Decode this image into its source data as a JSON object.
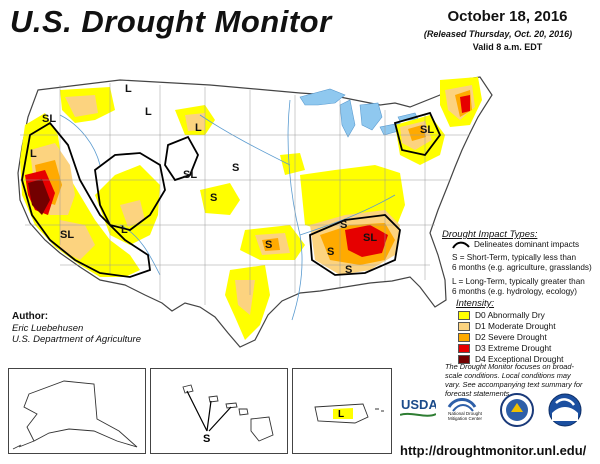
{
  "header": {
    "title": "U.S. Drought Monitor",
    "date": "October 18, 2016",
    "released": "(Released Thursday, Oct. 20, 2016)",
    "valid": "Valid 8 a.m. EDT"
  },
  "map_labels": {
    "sl": "SL",
    "l": "L",
    "s": "S"
  },
  "legend": {
    "impact_heading": "Drought Impact Types:",
    "dominant": "Delineates dominant impacts",
    "short_term_1": "S = Short-Term, typically less than",
    "short_term_2": "6 months (e.g. agriculture, grasslands)",
    "long_term_1": "L = Long-Term, typically greater than",
    "long_term_2": "6 months (e.g. hydrology, ecology)",
    "intensity_heading": "Intensity:",
    "categories": [
      {
        "label": "D0 Abnormally Dry",
        "color": "#ffff00"
      },
      {
        "label": "D1 Moderate Drought",
        "color": "#fcd37f"
      },
      {
        "label": "D2 Severe Drought",
        "color": "#ffaa00"
      },
      {
        "label": "D3 Extreme Drought",
        "color": "#e60000"
      },
      {
        "label": "D4 Exceptional Drought",
        "color": "#730000"
      }
    ]
  },
  "author": {
    "heading": "Author:",
    "name": "Eric Luebehusen",
    "org": "U.S. Department of Agriculture"
  },
  "footnote": {
    "line1": "The Drought Monitor focuses on broad-",
    "line2": "scale conditions. Local conditions may",
    "line3": "vary. See accompanying text summary for",
    "line4": "forecast statements."
  },
  "logos": {
    "usda": "USDA",
    "ndmc": "National Drought Mitigation Center"
  },
  "url": "http://droughtmonitor.unl.edu/",
  "colors": {
    "land": "#ffffff",
    "water": "#8fc8ef",
    "boundary": "#9a9a9a",
    "impact_line": "#000000"
  }
}
